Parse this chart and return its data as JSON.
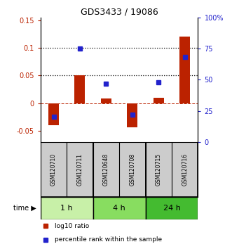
{
  "title": "GDS3433 / 19086",
  "samples": [
    "GSM120710",
    "GSM120711",
    "GSM120648",
    "GSM120708",
    "GSM120715",
    "GSM120716"
  ],
  "log10_ratio": [
    -0.04,
    0.051,
    0.008,
    -0.043,
    0.01,
    0.12
  ],
  "percentile": [
    20,
    75,
    47,
    22,
    48,
    68
  ],
  "groups": [
    {
      "label": "1 h",
      "indices": [
        0,
        1
      ],
      "color": "#c8f0a8"
    },
    {
      "label": "4 h",
      "indices": [
        2,
        3
      ],
      "color": "#88dd60"
    },
    {
      "label": "24 h",
      "indices": [
        4,
        5
      ],
      "color": "#44bb30"
    }
  ],
  "bar_color": "#bb2200",
  "dot_color": "#2222cc",
  "ylim_left": [
    -0.07,
    0.155
  ],
  "ylim_right": [
    0,
    100
  ],
  "yticks_left": [
    -0.05,
    0.0,
    0.05,
    0.1,
    0.15
  ],
  "yticks_right": [
    0,
    25,
    50,
    75,
    100
  ],
  "ytick_labels_left": [
    "-0.05",
    "0",
    "0.05",
    "0.1",
    "0.15"
  ],
  "ytick_labels_right": [
    "0",
    "25",
    "50",
    "75",
    "100%"
  ],
  "hlines": [
    0.05,
    0.1
  ],
  "background_color": "#cccccc",
  "legend_items": [
    "log10 ratio",
    "percentile rank within the sample"
  ],
  "time_label": "time"
}
